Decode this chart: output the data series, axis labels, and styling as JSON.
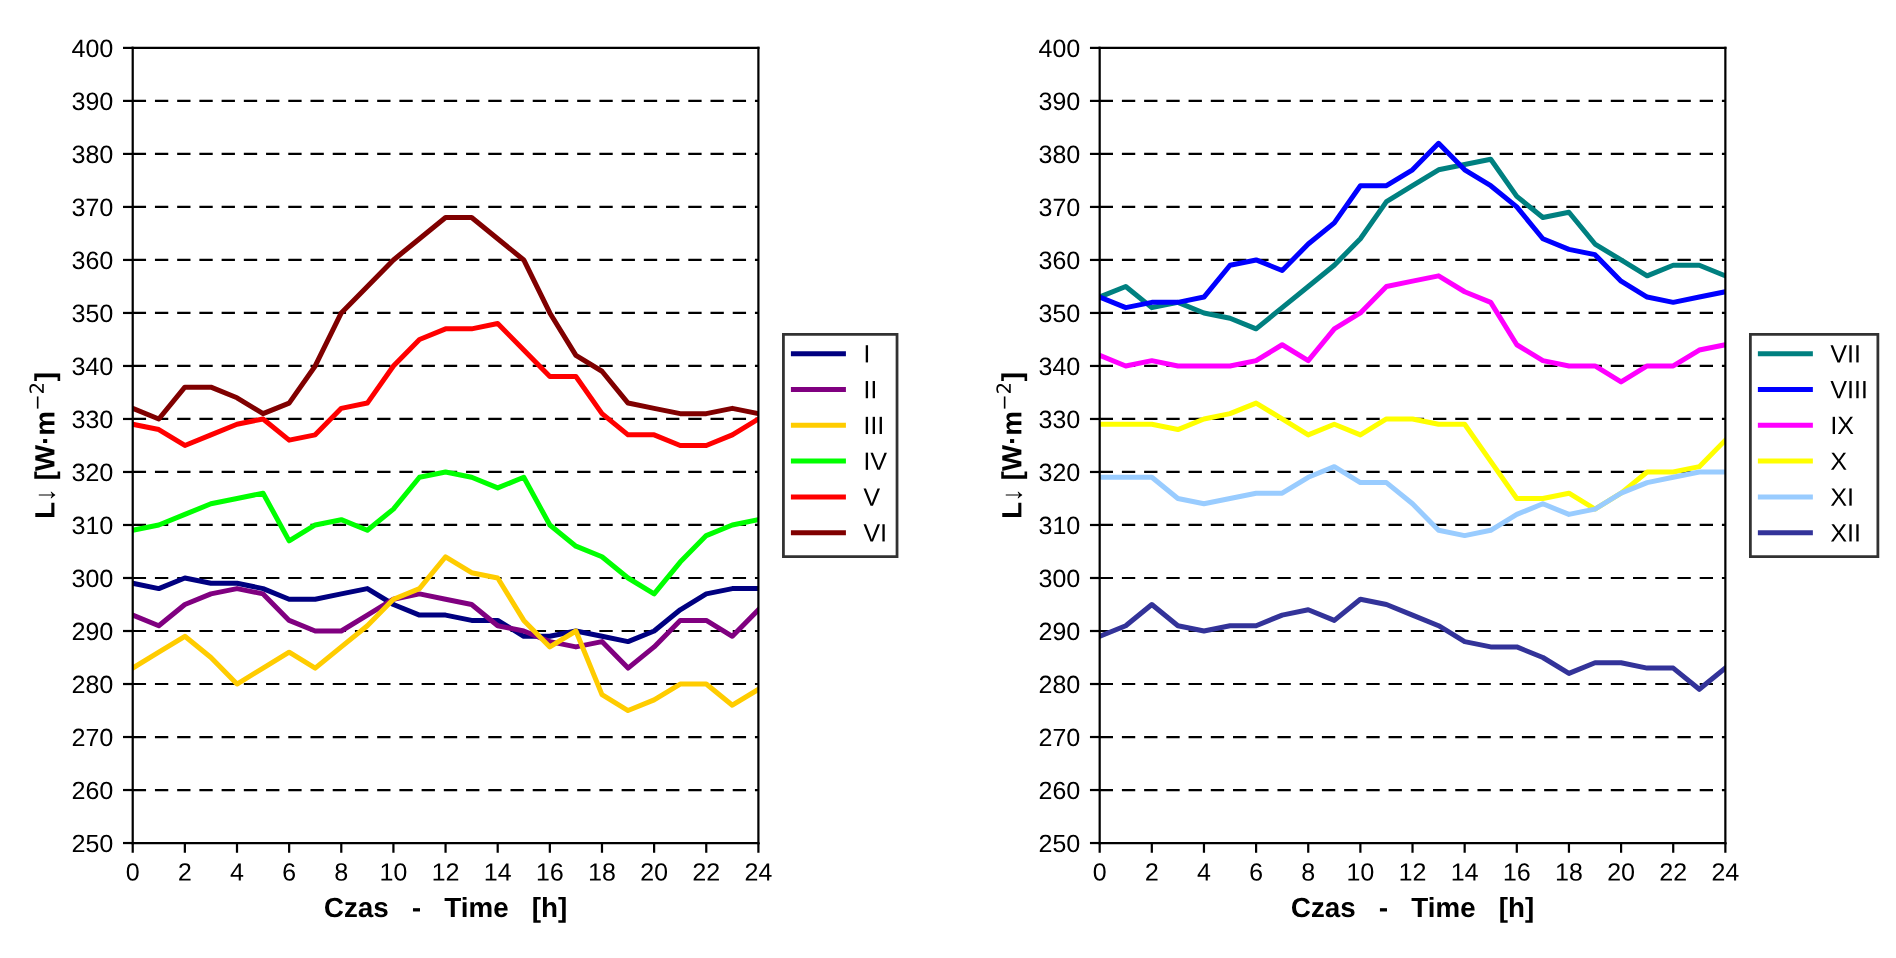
{
  "chart_data": [
    {
      "type": "line",
      "xlabel": "Czas   -   Time   [h]",
      "ylabel": "L↓ [W·m$^{−2}$]",
      "x": [
        0,
        1,
        2,
        3,
        4,
        5,
        6,
        7,
        8,
        9,
        10,
        11,
        12,
        13,
        14,
        15,
        16,
        17,
        18,
        19,
        20,
        21,
        22,
        23,
        24
      ],
      "xlim": [
        0,
        24
      ],
      "xticks": [
        0,
        2,
        4,
        6,
        8,
        10,
        12,
        14,
        16,
        18,
        20,
        22,
        24
      ],
      "ylim": [
        250,
        400
      ],
      "yticks": [
        250,
        260,
        270,
        280,
        290,
        300,
        310,
        320,
        330,
        340,
        350,
        360,
        370,
        380,
        390,
        400
      ],
      "grid": "y",
      "legend": "right",
      "marker": "none",
      "line_style": "solid",
      "series": [
        {
          "name": "I",
          "color": "#000080",
          "values": [
            299,
            298,
            300,
            299,
            299,
            298,
            296,
            296,
            297,
            298,
            295,
            293,
            293,
            292,
            292,
            289,
            289,
            290,
            289,
            288,
            290,
            294,
            297,
            298,
            298
          ]
        },
        {
          "name": "II",
          "color": "#800080",
          "values": [
            293,
            291,
            295,
            297,
            298,
            297,
            292,
            290,
            290,
            293,
            296,
            297,
            296,
            295,
            291,
            290,
            288,
            287,
            288,
            283,
            287,
            292,
            292,
            289,
            294
          ]
        },
        {
          "name": "III",
          "color": "#ffcc00",
          "values": [
            283,
            286,
            289,
            285,
            280,
            283,
            286,
            283,
            287,
            291,
            296,
            298,
            304,
            301,
            300,
            292,
            287,
            290,
            278,
            275,
            277,
            280,
            280,
            276,
            279
          ]
        },
        {
          "name": "IV",
          "color": "#00ff00",
          "values": [
            309,
            310,
            312,
            314,
            315,
            316,
            307,
            310,
            311,
            309,
            313,
            319,
            320,
            319,
            317,
            319,
            310,
            306,
            304,
            300,
            297,
            303,
            308,
            310,
            311
          ]
        },
        {
          "name": "V",
          "color": "#ff0000",
          "values": [
            329,
            328,
            325,
            327,
            329,
            330,
            326,
            327,
            332,
            333,
            340,
            345,
            347,
            347,
            348,
            343,
            338,
            338,
            331,
            327,
            327,
            325,
            325,
            327,
            330
          ]
        },
        {
          "name": "VI",
          "color": "#800000",
          "values": [
            332,
            330,
            336,
            336,
            334,
            331,
            333,
            340,
            350,
            355,
            360,
            364,
            368,
            368,
            364,
            360,
            350,
            342,
            339,
            333,
            332,
            331,
            331,
            332,
            331
          ]
        }
      ]
    },
    {
      "type": "line",
      "xlabel": "Czas   -   Time   [h]",
      "ylabel": "L↓ [W·m$^{−2}$]",
      "x": [
        0,
        1,
        2,
        3,
        4,
        5,
        6,
        7,
        8,
        9,
        10,
        11,
        12,
        13,
        14,
        15,
        16,
        17,
        18,
        19,
        20,
        21,
        22,
        23,
        24
      ],
      "xlim": [
        0,
        24
      ],
      "xticks": [
        0,
        2,
        4,
        6,
        8,
        10,
        12,
        14,
        16,
        18,
        20,
        22,
        24
      ],
      "ylim": [
        250,
        400
      ],
      "yticks": [
        250,
        260,
        270,
        280,
        290,
        300,
        310,
        320,
        330,
        340,
        350,
        360,
        370,
        380,
        390,
        400
      ],
      "grid": "y",
      "legend": "right",
      "marker": "none",
      "line_style": "solid",
      "series": [
        {
          "name": "VII",
          "color": "#008080",
          "values": [
            353,
            355,
            351,
            352,
            350,
            349,
            347,
            351,
            355,
            359,
            364,
            371,
            374,
            377,
            378,
            379,
            372,
            368,
            369,
            363,
            360,
            357,
            359,
            359,
            357
          ]
        },
        {
          "name": "VIII",
          "color": "#0000ff",
          "values": [
            353,
            351,
            352,
            352,
            353,
            359,
            360,
            358,
            363,
            367,
            374,
            374,
            377,
            382,
            377,
            374,
            370,
            364,
            362,
            361,
            356,
            353,
            352,
            353,
            354
          ]
        },
        {
          "name": "IX",
          "color": "#ff00ff",
          "values": [
            342,
            340,
            341,
            340,
            340,
            340,
            341,
            344,
            341,
            347,
            350,
            355,
            356,
            357,
            354,
            352,
            344,
            341,
            340,
            340,
            337,
            340,
            340,
            343,
            344
          ]
        },
        {
          "name": "X",
          "color": "#ffff00",
          "values": [
            329,
            329,
            329,
            328,
            330,
            331,
            333,
            330,
            327,
            329,
            327,
            330,
            330,
            329,
            329,
            322,
            315,
            315,
            316,
            313,
            316,
            320,
            320,
            321,
            326
          ]
        },
        {
          "name": "XI",
          "color": "#99ccff",
          "values": [
            319,
            319,
            319,
            315,
            314,
            315,
            316,
            316,
            319,
            321,
            318,
            318,
            314,
            309,
            308,
            309,
            312,
            314,
            312,
            313,
            316,
            318,
            319,
            320,
            320
          ]
        },
        {
          "name": "XII",
          "color": "#333399",
          "values": [
            289,
            291,
            295,
            291,
            290,
            291,
            291,
            293,
            294,
            292,
            296,
            295,
            293,
            291,
            288,
            287,
            287,
            285,
            282,
            284,
            284,
            283,
            283,
            279,
            283
          ]
        }
      ]
    }
  ]
}
